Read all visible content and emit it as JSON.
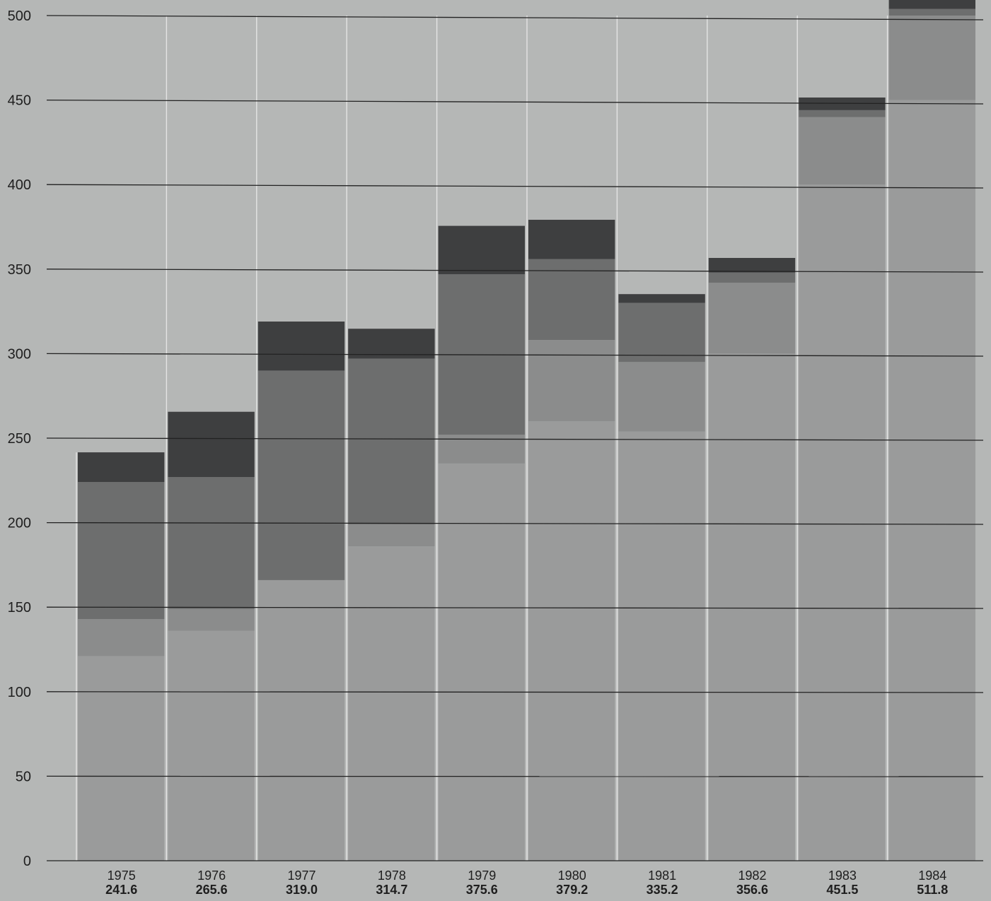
{
  "chart_data": {
    "type": "bar",
    "stacked": true,
    "title": "",
    "xlabel": "",
    "ylabel": "",
    "ylim": [
      0,
      510
    ],
    "yticks": [
      0,
      50,
      100,
      150,
      200,
      250,
      300,
      350,
      400,
      450,
      500
    ],
    "grid": true,
    "categories": [
      "1975",
      "1976",
      "1977",
      "1978",
      "1979",
      "1980",
      "1981",
      "1982",
      "1983",
      "1984"
    ],
    "value_labels": [
      "241.6",
      "265.6",
      "319.0",
      "314.7",
      "375.6",
      "379.2",
      "335.2",
      "356.6",
      "451.5",
      "511.8"
    ],
    "totals": [
      241.6,
      265.6,
      319.0,
      314.7,
      375.6,
      379.2,
      335.2,
      356.6,
      451.5,
      511.8
    ],
    "series": [
      {
        "color": "#9a9b9b",
        "values": [
          121,
          136,
          166,
          186,
          235,
          260,
          254,
          300,
          400,
          450
        ]
      },
      {
        "color": "#8b8c8c",
        "values": [
          22,
          13,
          0,
          13,
          17,
          48,
          41,
          42,
          40,
          50
        ]
      },
      {
        "color": "#6d6e6e",
        "values": [
          81,
          78,
          124,
          98,
          95,
          48,
          35,
          6,
          4,
          4
        ]
      },
      {
        "color": "#3e3f40",
        "values": [
          17.6,
          38.6,
          29.0,
          17.7,
          28.6,
          23.2,
          5.2,
          8.6,
          7.5,
          7.8
        ]
      }
    ],
    "colors": {
      "background": "#b5b7b6",
      "gridline": "#222222",
      "vertical_divider": "#e4e4e4"
    }
  }
}
